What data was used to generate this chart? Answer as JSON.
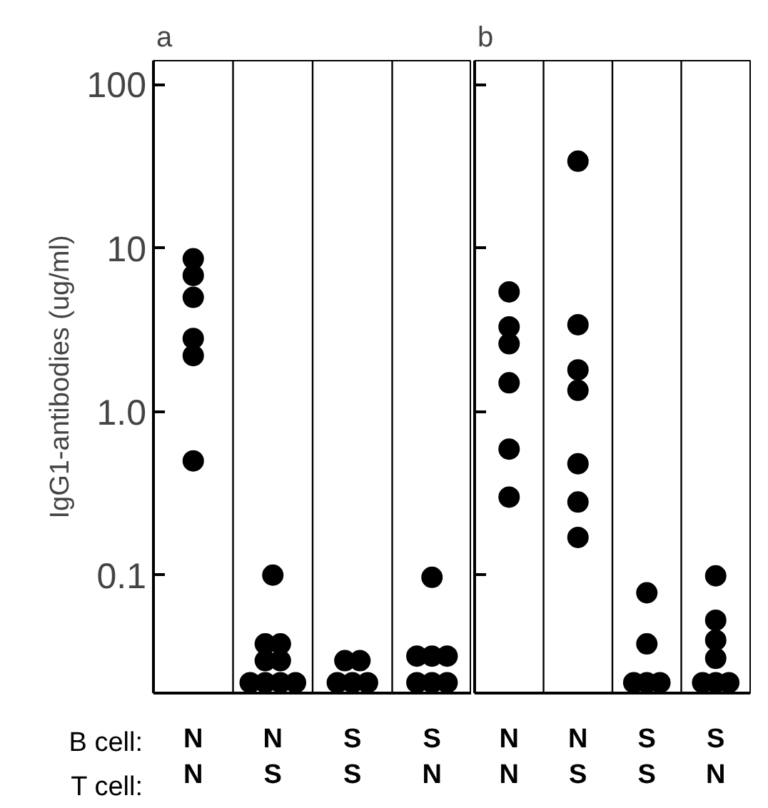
{
  "chart_data": [
    {
      "type": "scatter",
      "title": "a",
      "ylabel": "IgG1-antibodies (ug/ml)",
      "categories": [
        "N\nN",
        "N\nS",
        "S\nS",
        "S\nN"
      ],
      "series": [
        {
          "color": "#000000",
          "x": [
            "N\nN",
            "N\nN",
            "N\nN",
            "N\nN",
            "N\nN",
            "N\nN",
            "N\nS",
            "N\nS",
            "N\nS",
            "N\nS",
            "N\nS",
            "N\nS",
            "N\nS",
            "N\nS",
            "N\nS",
            "S\nS",
            "S\nS",
            "S\nS",
            "S\nS",
            "S\nS",
            "S\nN",
            "S\nN",
            "S\nN",
            "S\nN",
            "S\nN",
            "S\nN",
            "S\nN"
          ],
          "values": [
            8.6,
            6.8,
            5.0,
            2.8,
            2.2,
            0.5,
            0.1,
            0.038,
            0.038,
            0.03,
            0.03,
            0.022,
            0.022,
            0.022,
            0.022,
            0.03,
            0.03,
            0.022,
            0.022,
            0.022,
            0.097,
            0.032,
            0.032,
            0.032,
            0.022,
            0.022,
            0.022
          ]
        }
      ],
      "log": true,
      "ylim": [
        0.019,
        140
      ],
      "yticks": [
        100,
        10,
        {
          "value": 1,
          "label": "1.0"
        },
        0.1
      ],
      "grid": "x",
      "marker": "circle",
      "annotations": [
        "B cell:",
        "T cell:"
      ]
    },
    {
      "type": "scatter",
      "title": "b",
      "categories": [
        "N\nN",
        "N\nS",
        "S\nS",
        "S\nN"
      ],
      "series": [
        {
          "color": "#000000",
          "x": [
            "N\nN",
            "N\nN",
            "N\nN",
            "N\nN",
            "N\nN",
            "N\nN",
            "N\nS",
            "N\nS",
            "N\nS",
            "N\nS",
            "N\nS",
            "N\nS",
            "N\nS",
            "S\nS",
            "S\nS",
            "S\nS",
            "S\nS",
            "S\nS",
            "S\nN",
            "S\nN",
            "S\nN",
            "S\nN",
            "S\nN",
            "S\nN",
            "S\nN"
          ],
          "values": [
            5.4,
            3.3,
            2.6,
            1.5,
            0.59,
            0.3,
            34,
            3.4,
            1.8,
            1.35,
            0.48,
            0.28,
            0.17,
            0.078,
            0.038,
            0.022,
            0.022,
            0.022,
            0.099,
            0.053,
            0.04,
            0.031,
            0.022,
            0.022,
            0.022
          ]
        }
      ],
      "log": true,
      "ylim": [
        0.019,
        140
      ],
      "yticks": [
        100,
        10,
        1,
        0.1
      ],
      "grid": "x",
      "marker": "circle",
      "tick_labels": "x"
    }
  ]
}
